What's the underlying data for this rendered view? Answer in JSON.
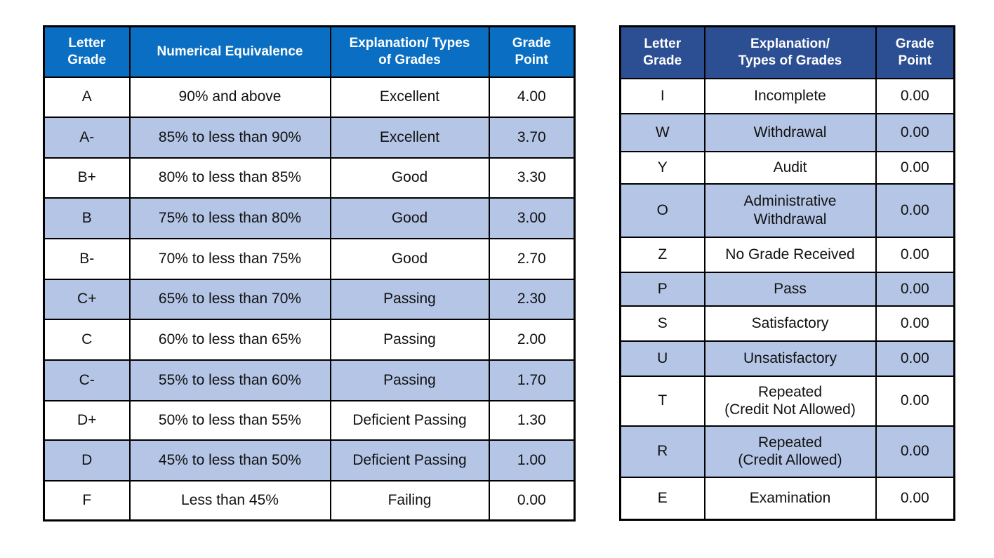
{
  "left_table": {
    "headers": [
      "Letter\nGrade",
      "Numerical Equivalence",
      "Explanation/ Types\nof Grades",
      "Grade\nPoint"
    ],
    "rows": [
      [
        "A",
        "90% and above",
        "Excellent",
        "4.00"
      ],
      [
        "A-",
        "85% to less than 90%",
        "Excellent",
        "3.70"
      ],
      [
        "B+",
        "80% to less than 85%",
        "Good",
        "3.30"
      ],
      [
        "B",
        "75% to less than 80%",
        "Good",
        "3.00"
      ],
      [
        "B-",
        "70% to less than 75%",
        "Good",
        "2.70"
      ],
      [
        "C+",
        "65% to less than 70%",
        "Passing",
        "2.30"
      ],
      [
        "C",
        "60% to less than 65%",
        "Passing",
        "2.00"
      ],
      [
        "C-",
        "55% to less than 60%",
        "Passing",
        "1.70"
      ],
      [
        "D+",
        "50% to less than 55%",
        "Deficient Passing",
        "1.30"
      ],
      [
        "D",
        "45% to less than 50%",
        "Deficient Passing",
        "1.00"
      ],
      [
        "F",
        "Less than 45%",
        "Failing",
        "0.00"
      ]
    ]
  },
  "right_table": {
    "headers": [
      "Letter\nGrade",
      "Explanation/\nTypes of Grades",
      "Grade\nPoint"
    ],
    "rows": [
      [
        "I",
        "Incomplete",
        "0.00"
      ],
      [
        "W",
        "Withdrawal",
        "0.00"
      ],
      [
        "Y",
        "Audit",
        "0.00"
      ],
      [
        "O",
        "Administrative\nWithdrawal",
        "0.00"
      ],
      [
        "Z",
        "No Grade Received",
        "0.00"
      ],
      [
        "P",
        "Pass",
        "0.00"
      ],
      [
        "S",
        "Satisfactory",
        "0.00"
      ],
      [
        "U",
        "Unsatisfactory",
        "0.00"
      ],
      [
        "T",
        "Repeated\n(Credit Not Allowed)",
        "0.00"
      ],
      [
        "R",
        "Repeated\n(Credit Allowed)",
        "0.00"
      ],
      [
        "E",
        "Examination",
        "0.00"
      ]
    ]
  },
  "colors": {
    "left_header": "#0a6fc2",
    "right_header": "#2c4f93",
    "row_shade": "#b4c5e6",
    "row_plain": "#ffffff",
    "border": "#000000"
  }
}
